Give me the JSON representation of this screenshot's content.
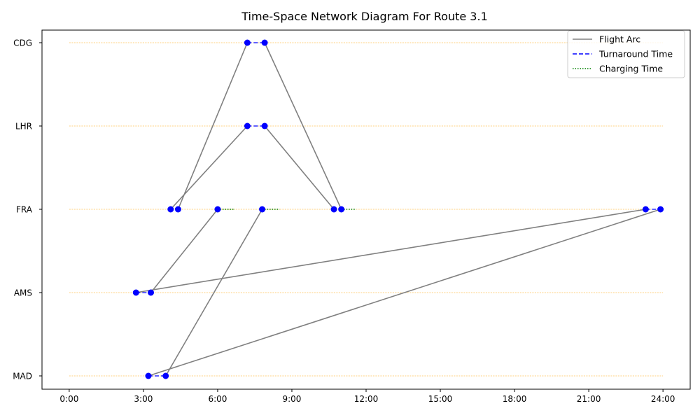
{
  "chart_data": {
    "type": "line",
    "title": "Time-Space Network Diagram For Route 3.1",
    "xlabel": "",
    "ylabel": "",
    "xlim_hours": [
      -1.1,
      25.1
    ],
    "x_ticks": [
      {
        "value": 0,
        "label": "0:00"
      },
      {
        "value": 3,
        "label": "3:00"
      },
      {
        "value": 6,
        "label": "6:00"
      },
      {
        "value": 9,
        "label": "9:00"
      },
      {
        "value": 12,
        "label": "12:00"
      },
      {
        "value": 15,
        "label": "15:00"
      },
      {
        "value": 18,
        "label": "18:00"
      },
      {
        "value": 21,
        "label": "21:00"
      },
      {
        "value": 24,
        "label": "24:00"
      }
    ],
    "stations": [
      "MAD",
      "AMS",
      "FRA",
      "LHR",
      "CDG"
    ],
    "station_line_color": "#ffa500",
    "legend_position": "top-right",
    "legend": [
      {
        "key": "flight",
        "label": "Flight Arc",
        "color": "#808080",
        "style": "solid"
      },
      {
        "key": "turnaround",
        "label": "Turnaround Time",
        "color": "#0000ff",
        "style": "dashed"
      },
      {
        "key": "charging",
        "label": "Charging Time",
        "color": "#008000",
        "style": "dotted"
      }
    ],
    "flight_arcs": [
      {
        "from": "AMS",
        "dep": 3.3,
        "to": "FRA",
        "arr": 6.0
      },
      {
        "from": "MAD",
        "dep": 3.9,
        "to": "FRA",
        "arr": 7.8
      },
      {
        "from": "FRA",
        "dep": 4.1,
        "to": "LHR",
        "arr": 7.2
      },
      {
        "from": "FRA",
        "dep": 4.4,
        "to": "CDG",
        "arr": 7.2
      },
      {
        "from": "LHR",
        "dep": 7.9,
        "to": "FRA",
        "arr": 10.7
      },
      {
        "from": "CDG",
        "dep": 7.9,
        "to": "FRA",
        "arr": 11.0
      },
      {
        "from": "FRA",
        "dep": 23.3,
        "to": "AMS",
        "arr": 2.7
      },
      {
        "from": "FRA",
        "dep": 23.9,
        "to": "MAD",
        "arr": 3.2
      }
    ],
    "turnarounds": [
      {
        "station": "AMS",
        "start": 2.7,
        "end": 3.3
      },
      {
        "station": "MAD",
        "start": 3.2,
        "end": 3.9
      },
      {
        "station": "LHR",
        "start": 7.2,
        "end": 7.9
      },
      {
        "station": "CDG",
        "start": 7.2,
        "end": 7.9
      },
      {
        "station": "FRA",
        "start": 23.3,
        "end": 23.9
      }
    ],
    "charging": [
      {
        "station": "FRA",
        "start": 6.0,
        "end": 6.7
      },
      {
        "station": "FRA",
        "start": 7.8,
        "end": 8.5
      },
      {
        "station": "FRA",
        "start": 11.0,
        "end": 11.6
      }
    ],
    "points": [
      {
        "station": "AMS",
        "t": 2.7
      },
      {
        "station": "AMS",
        "t": 3.3
      },
      {
        "station": "MAD",
        "t": 3.2
      },
      {
        "station": "MAD",
        "t": 3.9
      },
      {
        "station": "FRA",
        "t": 4.1
      },
      {
        "station": "FRA",
        "t": 4.4
      },
      {
        "station": "FRA",
        "t": 6.0
      },
      {
        "station": "FRA",
        "t": 7.8
      },
      {
        "station": "FRA",
        "t": 10.7
      },
      {
        "station": "FRA",
        "t": 11.0
      },
      {
        "station": "FRA",
        "t": 23.3
      },
      {
        "station": "FRA",
        "t": 23.9
      },
      {
        "station": "LHR",
        "t": 7.2
      },
      {
        "station": "LHR",
        "t": 7.9
      },
      {
        "station": "CDG",
        "t": 7.2
      },
      {
        "station": "CDG",
        "t": 7.9
      }
    ],
    "point_color": "#0000ff",
    "grid": false
  }
}
